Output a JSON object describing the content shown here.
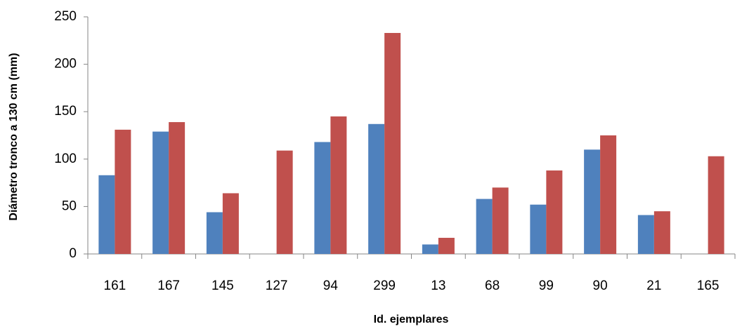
{
  "chart_data": {
    "type": "bar",
    "y_label": "Diámetro tronco a 130 cm (mm)",
    "x_label": "Id. ejemplares",
    "categories": [
      "161",
      "167",
      "145",
      "127",
      "94",
      "299",
      "13",
      "68",
      "99",
      "90",
      "21",
      "165"
    ],
    "series": [
      {
        "color": "#4f81bd",
        "values": [
          83,
          129,
          44,
          null,
          118,
          137,
          10,
          58,
          52,
          110,
          41,
          null
        ]
      },
      {
        "color": "#c0504d",
        "values": [
          131,
          139,
          64,
          109,
          145,
          233,
          17,
          70,
          88,
          125,
          45,
          103
        ]
      }
    ],
    "ylim": [
      0,
      250
    ],
    "yticks": [
      0,
      50,
      100,
      150,
      200,
      250
    ],
    "grid": false
  }
}
